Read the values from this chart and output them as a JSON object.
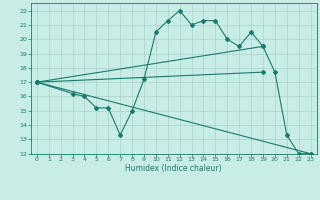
{
  "xlabel": "Humidex (Indice chaleur)",
  "xlim": [
    -0.5,
    23.5
  ],
  "ylim": [
    12,
    22.5
  ],
  "xticks": [
    0,
    1,
    2,
    3,
    4,
    5,
    6,
    7,
    8,
    9,
    10,
    11,
    12,
    13,
    14,
    15,
    16,
    17,
    18,
    19,
    20,
    21,
    22,
    23
  ],
  "yticks": [
    12,
    13,
    14,
    15,
    16,
    17,
    18,
    19,
    20,
    21,
    22
  ],
  "bg_color": "#c8ece6",
  "grid_color": "#a0ccc6",
  "line_color": "#1a7a6e",
  "upper_trend_x": [
    0,
    19
  ],
  "upper_trend_y": [
    17,
    19.5
  ],
  "mid_trend_x": [
    0,
    19
  ],
  "mid_trend_y": [
    17,
    17.7
  ],
  "lower_trend_x": [
    0,
    23
  ],
  "lower_trend_y": [
    17,
    12
  ],
  "curve_x": [
    0,
    3,
    4,
    5,
    6,
    7,
    8,
    9,
    10,
    11,
    12,
    13,
    14,
    15,
    16,
    17,
    18,
    19,
    20,
    21,
    22,
    23
  ],
  "curve_y": [
    17,
    16.2,
    16.0,
    15.2,
    15.2,
    13.3,
    15.0,
    17.2,
    20.5,
    21.3,
    22.0,
    21.0,
    21.3,
    21.3,
    20.0,
    19.5,
    20.5,
    19.5,
    17.7,
    13.3,
    12.0,
    12.0
  ]
}
